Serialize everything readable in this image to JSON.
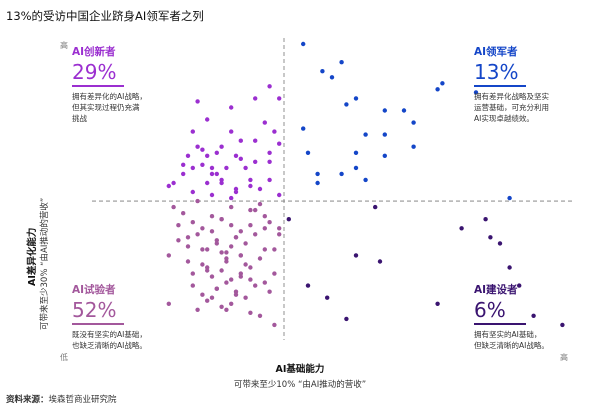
{
  "title": "13%的受访中国企业跻身AI领军者之列",
  "y_axis": {
    "label": "AI差异化能力",
    "sublabel": "可带来至少30% “由AI推动的营收”",
    "high": "高",
    "low": "低"
  },
  "x_axis": {
    "label": "AI基础能力",
    "sublabel": "可带来至少10% “由AI推动的营收”",
    "high": "高"
  },
  "quadrants": {
    "innovators": {
      "name": "AI创新者",
      "percent": "29%",
      "desc1": "拥有差异化的AI战略，",
      "desc2": "但其实现过程仍充满",
      "desc3": "挑战",
      "color": "#9b2fd0"
    },
    "leaders": {
      "name": "AI领军者",
      "percent": "13%",
      "desc1": "拥有差异化战略及坚实",
      "desc2": "运营基础，可充分利用",
      "desc3": "AI实现卓越绩效。",
      "color": "#1446c8"
    },
    "experimenters": {
      "name": "AI试验者",
      "percent": "52%",
      "desc1": "既没有坚实的AI基础，",
      "desc2": "也缺乏清晰的AI战略。",
      "color": "#a3589c"
    },
    "builders": {
      "name": "AI建设者",
      "percent": "6%",
      "desc1": "拥有坚实的AI基础，",
      "desc2": "但缺乏清晰的AI战略。",
      "color": "#3a1470"
    }
  },
  "source": {
    "label": "资料来源：",
    "text": "埃森哲商业研究院"
  },
  "chart_data": {
    "type": "scatter",
    "title": "13%的受访中国企业跻身AI领军者之列",
    "xlabel": "AI基础能力",
    "ylabel": "AI差异化能力",
    "xlim": [
      0,
      100
    ],
    "ylim": [
      0,
      100
    ],
    "grid": false,
    "threshold_x": 40,
    "threshold_y": 46,
    "series": [
      {
        "name": "AI创新者",
        "color": "#9b2fd0",
        "x": [
          17,
          19,
          21,
          23,
          24,
          26,
          31,
          24,
          29,
          22,
          27,
          31,
          25,
          34,
          37,
          21,
          27,
          30,
          34,
          37,
          23,
          27,
          30,
          33,
          20,
          25,
          29,
          33,
          37,
          39,
          22,
          28,
          35,
          39,
          24,
          30,
          19,
          26,
          32,
          38,
          39,
          36,
          34,
          29,
          16,
          21,
          25,
          37
        ],
        "y": [
          52,
          55,
          57,
          63,
          61,
          55,
          66,
          73,
          69,
          79,
          53,
          60,
          57,
          59,
          53,
          69,
          64,
          61,
          66,
          62,
          58,
          52,
          49,
          51,
          61,
          55,
          47,
          53,
          59,
          65,
          64,
          57,
          50,
          48,
          52,
          50,
          58,
          62,
          57,
          69,
          80,
          72,
          80,
          77,
          51,
          49,
          48,
          84
        ]
      },
      {
        "name": "AI领军者",
        "color": "#1446c8",
        "x": [
          44,
          48,
          50,
          52,
          55,
          57,
          61,
          65,
          67,
          72,
          73,
          80,
          87,
          44,
          45,
          47,
          53,
          55,
          57,
          61,
          67,
          55,
          47,
          52,
          61
        ],
        "y": [
          98,
          89,
          87,
          92,
          80,
          68,
          61,
          76,
          72,
          83,
          85,
          82,
          47,
          70,
          62,
          55,
          78,
          57,
          53,
          68,
          64,
          62,
          52,
          55,
          76
        ]
      },
      {
        "name": "AI试验者",
        "color": "#a3589c",
        "x": [
          17,
          19,
          21,
          23,
          25,
          27,
          29,
          31,
          33,
          35,
          37,
          39,
          18,
          20,
          22,
          24,
          26,
          28,
          30,
          32,
          34,
          36,
          38,
          16,
          20,
          24,
          28,
          32,
          36,
          25,
          27,
          29,
          31,
          33,
          35,
          38,
          21,
          23,
          26,
          28,
          30,
          32,
          34,
          16,
          22,
          24,
          27,
          30,
          33,
          37,
          20,
          23,
          26,
          29,
          31,
          33,
          36,
          18,
          21,
          25,
          27,
          29,
          31,
          34,
          22,
          26,
          28,
          30,
          36,
          24,
          33,
          27,
          29,
          31,
          23,
          25,
          28,
          35,
          38,
          39
        ],
        "y": [
          44,
          42,
          39,
          37,
          41,
          40,
          38,
          36,
          43,
          45,
          39,
          37,
          33,
          31,
          35,
          30,
          33,
          29,
          34,
          32,
          35,
          37,
          30,
          28,
          26,
          24,
          27,
          25,
          30,
          21,
          23,
          20,
          22,
          24,
          27,
          22,
          18,
          15,
          17,
          19,
          16,
          14,
          18,
          12,
          10,
          13,
          11,
          15,
          9,
          16,
          34,
          25,
          17,
          31,
          28,
          20,
          41,
          38,
          22,
          36,
          29,
          12,
          21,
          43,
          46,
          32,
          26,
          34,
          19,
          23,
          38,
          40,
          44,
          28,
          30,
          14,
          10,
          8,
          5,
          35
        ]
      },
      {
        "name": "AI建设者",
        "color": "#3a1470",
        "x": [
          41,
          45,
          53,
          59,
          77,
          82,
          83,
          85,
          87,
          89,
          98,
          55,
          49,
          72,
          60,
          92
        ],
        "y": [
          40,
          18,
          7,
          44,
          37,
          40,
          34,
          32,
          24,
          18,
          5,
          28,
          14,
          12,
          26,
          8
        ]
      }
    ]
  }
}
